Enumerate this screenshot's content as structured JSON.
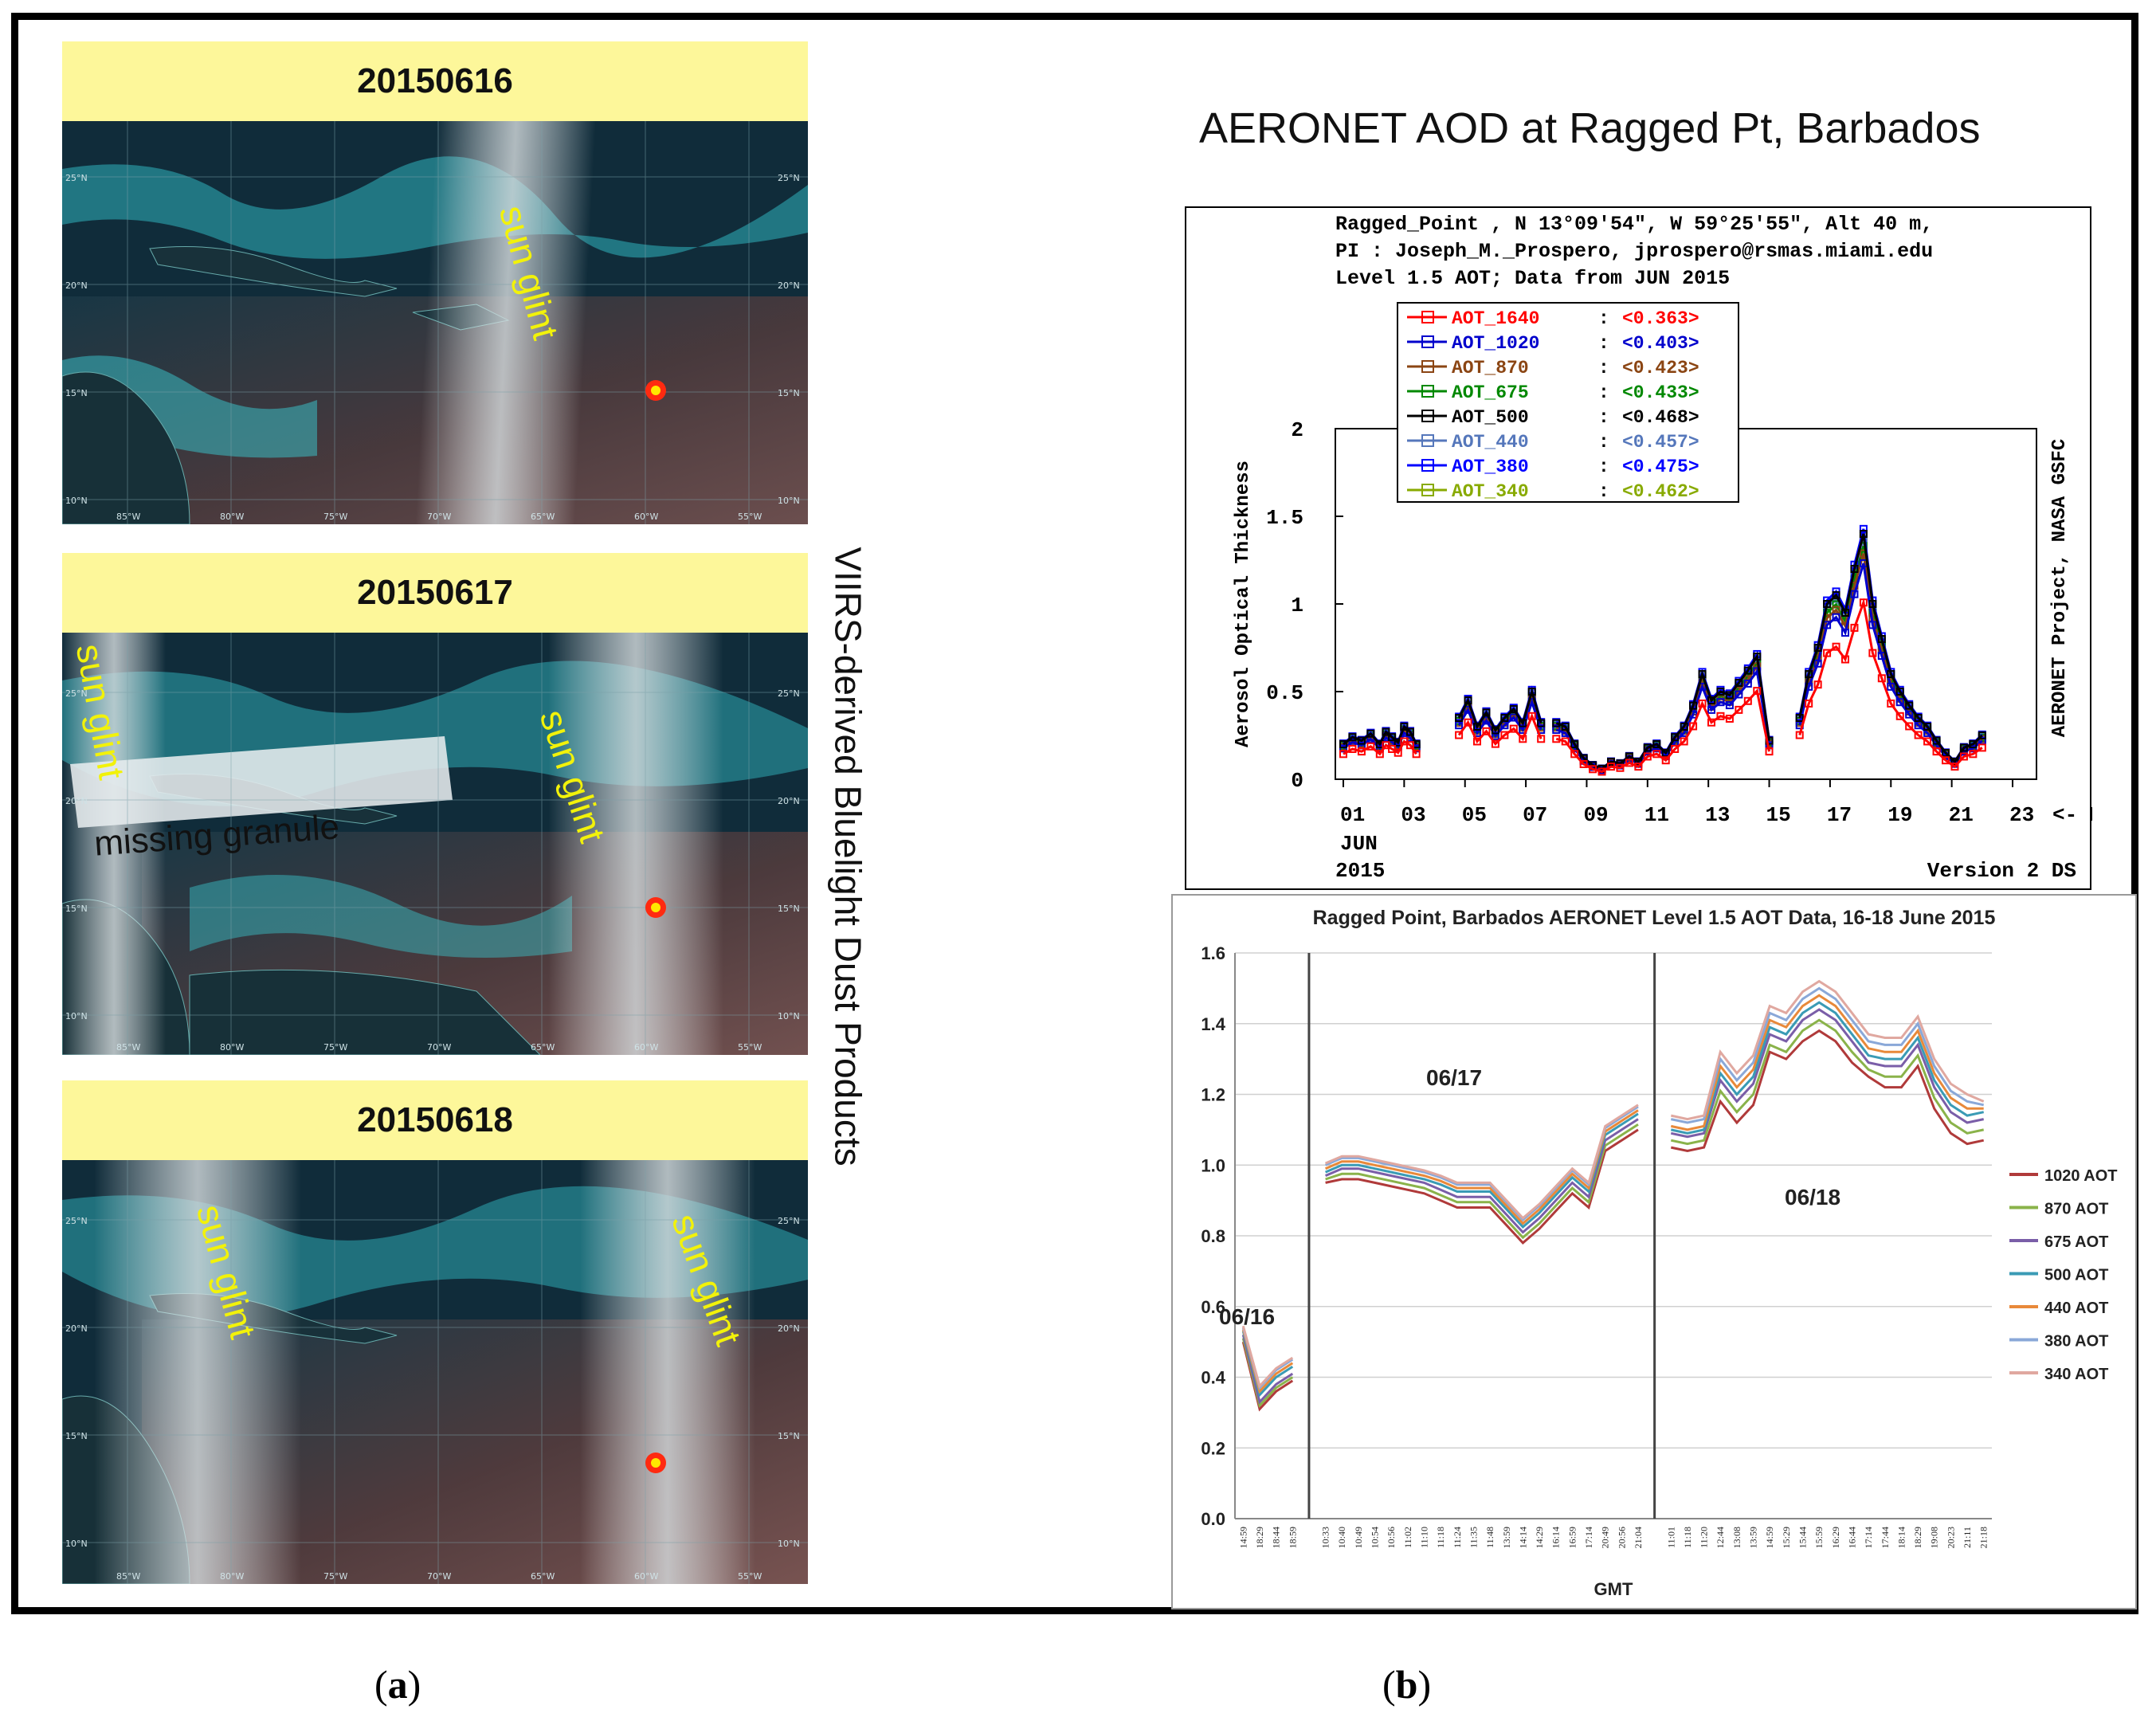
{
  "panel_a": {
    "vertical_title": "VIIRS-derived Bluelight Dust Products",
    "caption_label": "a",
    "maps": [
      {
        "date": "20150616",
        "glint_labels": [
          "sun glint"
        ],
        "annotation": ""
      },
      {
        "date": "20150617",
        "glint_labels": [
          "sun glint",
          "sun glint"
        ],
        "annotation": "missing granule"
      },
      {
        "date": "20150618",
        "glint_labels": [
          "sun glint",
          "sun glint"
        ],
        "annotation": ""
      }
    ],
    "lon_labels": [
      "85°W",
      "80°W",
      "75°W",
      "70°W",
      "65°W",
      "60°W",
      "55°W"
    ],
    "lat_labels": [
      "25°N",
      "20°N",
      "15°N",
      "10°N"
    ]
  },
  "panel_b": {
    "title": "AERONET AOD at Ragged Pt, Barbados",
    "caption_label": "b"
  },
  "chart_data": [
    {
      "type": "line",
      "header_lines": [
        "Ragged_Point , N 13°09'54\", W 59°25'55\", Alt 40 m,",
        "PI : Joseph_M._Prospero, jprospero@rsmas.miami.edu",
        "Level 1.5 AOT; Data from JUN 2015"
      ],
      "ylabel": "Aerosol Optical Thickness",
      "xlabel": "<- Day in GMT",
      "x_sublabel_month": "JUN",
      "x_sublabel_year": "2015",
      "side_label": "AERONET Project, NASA GSFC",
      "version_label": "Version 2 DS",
      "ylim": [
        0,
        2
      ],
      "xlim": [
        1,
        23
      ],
      "yticks": [
        "0",
        "0.5",
        "1",
        "1.5",
        "2"
      ],
      "xticks": [
        "01",
        "03",
        "05",
        "07",
        "09",
        "11",
        "13",
        "15",
        "17",
        "19",
        "21",
        "23"
      ],
      "legend": [
        {
          "name": "AOT_1640",
          "mean": "<0.363>",
          "color": "#ff0000"
        },
        {
          "name": "AOT_1020",
          "mean": "<0.403>",
          "color": "#0000cc"
        },
        {
          "name": "AOT_870",
          "mean": "<0.423>",
          "color": "#8b4513"
        },
        {
          "name": "AOT_675",
          "mean": "<0.433>",
          "color": "#008800"
        },
        {
          "name": "AOT_500",
          "mean": "<0.468>",
          "color": "#000000"
        },
        {
          "name": "AOT_440",
          "mean": "<0.457>",
          "color": "#5577bb"
        },
        {
          "name": "AOT_380",
          "mean": "<0.475>",
          "color": "#0000ff"
        },
        {
          "name": "AOT_340",
          "mean": "<0.462>",
          "color": "#88aa00"
        }
      ],
      "segments": [
        {
          "x": [
            1.0,
            1.3,
            1.6,
            1.9,
            2.2,
            2.4,
            2.6,
            2.8,
            3.0,
            3.2,
            3.4
          ],
          "y": [
            0.2,
            0.24,
            0.22,
            0.26,
            0.2,
            0.27,
            0.24,
            0.21,
            0.3,
            0.27,
            0.2
          ]
        },
        {
          "x": [
            4.8,
            5.1,
            5.4,
            5.7,
            6.0,
            6.3,
            6.6,
            6.9,
            7.2,
            7.5
          ],
          "y": [
            0.35,
            0.45,
            0.3,
            0.38,
            0.28,
            0.35,
            0.4,
            0.32,
            0.5,
            0.32
          ]
        },
        {
          "x": [
            8.0,
            8.3,
            8.6,
            8.9,
            9.2,
            9.5,
            9.8,
            10.1,
            10.4,
            10.7,
            11.0,
            11.3,
            11.6,
            11.9,
            12.2,
            12.5,
            12.8,
            13.1,
            13.4,
            13.7,
            14.0,
            14.3,
            14.6,
            15.0
          ],
          "y": [
            0.32,
            0.3,
            0.2,
            0.12,
            0.08,
            0.06,
            0.1,
            0.09,
            0.13,
            0.1,
            0.18,
            0.2,
            0.15,
            0.24,
            0.3,
            0.42,
            0.6,
            0.45,
            0.5,
            0.48,
            0.55,
            0.62,
            0.7,
            0.22
          ]
        },
        {
          "x": [
            16.0,
            16.3,
            16.6,
            16.9,
            17.2,
            17.5,
            17.8,
            18.1,
            18.4,
            18.7,
            19.0,
            19.3,
            19.6,
            19.9,
            20.2,
            20.5,
            20.8,
            21.1,
            21.4,
            21.7,
            22.0
          ],
          "y": [
            0.35,
            0.6,
            0.75,
            1.0,
            1.05,
            0.95,
            1.2,
            1.4,
            1.0,
            0.8,
            0.6,
            0.5,
            0.42,
            0.35,
            0.3,
            0.22,
            0.15,
            0.1,
            0.18,
            0.2,
            0.25
          ]
        }
      ]
    },
    {
      "type": "line",
      "title": "Ragged Point, Barbados AERONET Level 1.5 AOT Data, 16-18 June 2015",
      "xlabel": "GMT",
      "ylabel": "",
      "ylim": [
        0,
        1.6
      ],
      "yticks": [
        "0.0",
        "0.2",
        "0.4",
        "0.6",
        "0.8",
        "1.0",
        "1.2",
        "1.4",
        "1.6"
      ],
      "day_labels": [
        "06/16",
        "06/17",
        "06/18"
      ],
      "groups": [
        {
          "categories": [
            "14:59",
            "18:29",
            "18:44",
            "18:59"
          ]
        },
        {
          "categories": [
            "10:33",
            "10:40",
            "10:49",
            "10:54",
            "10:56",
            "11:02",
            "11:10",
            "11:18",
            "11:24",
            "11:35",
            "11:48",
            "13:59",
            "14:14",
            "14:29",
            "16:14",
            "16:59",
            "17:14",
            "20:49",
            "20:56",
            "21:04"
          ]
        },
        {
          "categories": [
            "11:01",
            "11:18",
            "11:20",
            "12:44",
            "13:08",
            "13:59",
            "14:59",
            "15:29",
            "15:44",
            "15:59",
            "16:29",
            "16:44",
            "17:14",
            "17:44",
            "18:14",
            "18:29",
            "19:08",
            "20:23",
            "21:11",
            "21:18"
          ]
        }
      ],
      "series": [
        {
          "name": "1020 AOT",
          "color": "#b03a3a",
          "values": [
            [
              0.5,
              0.31,
              0.36,
              0.39
            ],
            [
              0.95,
              0.96,
              0.96,
              0.95,
              0.94,
              0.93,
              0.92,
              0.9,
              0.88,
              0.88,
              0.88,
              0.83,
              0.78,
              0.82,
              0.87,
              0.92,
              0.88,
              1.04,
              1.07,
              1.1
            ],
            [
              1.05,
              1.04,
              1.05,
              1.18,
              1.12,
              1.17,
              1.32,
              1.3,
              1.35,
              1.38,
              1.35,
              1.29,
              1.25,
              1.22,
              1.22,
              1.28,
              1.16,
              1.09,
              1.06,
              1.07
            ]
          ]
        },
        {
          "name": "870 AOT",
          "color": "#8ab34a",
          "values": [
            [
              0.51,
              0.32,
              0.37,
              0.4
            ],
            [
              0.96,
              0.975,
              0.975,
              0.965,
              0.955,
              0.945,
              0.935,
              0.915,
              0.895,
              0.895,
              0.895,
              0.845,
              0.795,
              0.835,
              0.885,
              0.935,
              0.895,
              1.055,
              1.085,
              1.115
            ],
            [
              1.07,
              1.06,
              1.07,
              1.21,
              1.15,
              1.2,
              1.34,
              1.32,
              1.38,
              1.41,
              1.38,
              1.32,
              1.27,
              1.25,
              1.25,
              1.31,
              1.19,
              1.12,
              1.09,
              1.1
            ]
          ]
        },
        {
          "name": "675 AOT",
          "color": "#7a5ea8",
          "values": [
            [
              0.52,
              0.33,
              0.38,
              0.41
            ],
            [
              0.97,
              0.99,
              0.99,
              0.98,
              0.97,
              0.96,
              0.95,
              0.93,
              0.91,
              0.91,
              0.91,
              0.86,
              0.81,
              0.85,
              0.9,
              0.95,
              0.91,
              1.07,
              1.1,
              1.13
            ],
            [
              1.09,
              1.08,
              1.09,
              1.24,
              1.18,
              1.23,
              1.37,
              1.35,
              1.41,
              1.44,
              1.41,
              1.35,
              1.29,
              1.28,
              1.28,
              1.34,
              1.22,
              1.15,
              1.12,
              1.13
            ]
          ]
        },
        {
          "name": "500 AOT",
          "color": "#3a9bb5",
          "values": [
            [
              0.53,
              0.35,
              0.4,
              0.43
            ],
            [
              0.98,
              1.0,
              1.0,
              0.99,
              0.98,
              0.97,
              0.96,
              0.945,
              0.925,
              0.925,
              0.925,
              0.875,
              0.825,
              0.865,
              0.915,
              0.965,
              0.925,
              1.085,
              1.115,
              1.145
            ],
            [
              1.1,
              1.09,
              1.1,
              1.26,
              1.2,
              1.25,
              1.39,
              1.37,
              1.43,
              1.46,
              1.43,
              1.37,
              1.31,
              1.3,
              1.3,
              1.36,
              1.24,
              1.17,
              1.14,
              1.15
            ]
          ]
        },
        {
          "name": "440 AOT",
          "color": "#e8893a",
          "values": [
            [
              0.535,
              0.36,
              0.41,
              0.44
            ],
            [
              0.99,
              1.01,
              1.01,
              1.0,
              0.99,
              0.98,
              0.97,
              0.955,
              0.935,
              0.935,
              0.935,
              0.885,
              0.835,
              0.875,
              0.925,
              0.975,
              0.935,
              1.095,
              1.125,
              1.155
            ],
            [
              1.11,
              1.1,
              1.11,
              1.28,
              1.22,
              1.27,
              1.41,
              1.39,
              1.45,
              1.48,
              1.45,
              1.39,
              1.33,
              1.32,
              1.32,
              1.38,
              1.26,
              1.19,
              1.16,
              1.16
            ]
          ]
        },
        {
          "name": "380 AOT",
          "color": "#8aa8d8",
          "values": [
            [
              0.54,
              0.37,
              0.42,
              0.45
            ],
            [
              1.0,
              1.02,
              1.02,
              1.01,
              1.0,
              0.99,
              0.98,
              0.965,
              0.945,
              0.945,
              0.945,
              0.895,
              0.845,
              0.885,
              0.935,
              0.985,
              0.945,
              1.105,
              1.135,
              1.165
            ],
            [
              1.13,
              1.12,
              1.13,
              1.3,
              1.24,
              1.29,
              1.43,
              1.41,
              1.47,
              1.5,
              1.47,
              1.41,
              1.35,
              1.34,
              1.34,
              1.4,
              1.28,
              1.21,
              1.18,
              1.17
            ]
          ]
        },
        {
          "name": "340 AOT",
          "color": "#e0a8a0",
          "values": [
            [
              0.545,
              0.375,
              0.425,
              0.455
            ],
            [
              1.005,
              1.025,
              1.025,
              1.015,
              1.005,
              0.995,
              0.985,
              0.97,
              0.95,
              0.95,
              0.95,
              0.9,
              0.85,
              0.89,
              0.94,
              0.99,
              0.95,
              1.11,
              1.14,
              1.17
            ],
            [
              1.14,
              1.13,
              1.14,
              1.32,
              1.26,
              1.31,
              1.45,
              1.43,
              1.49,
              1.52,
              1.49,
              1.43,
              1.37,
              1.36,
              1.36,
              1.42,
              1.3,
              1.23,
              1.2,
              1.18
            ]
          ]
        }
      ]
    }
  ]
}
